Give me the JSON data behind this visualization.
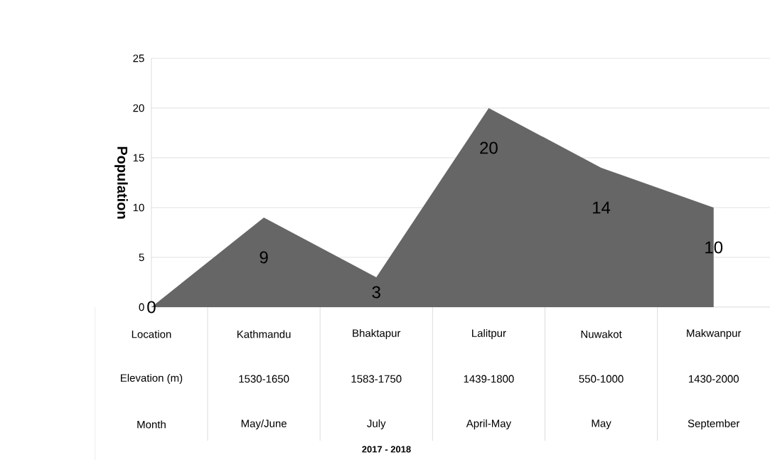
{
  "chart_data": {
    "type": "area",
    "categories": [
      "Location",
      "Kathmandu",
      "Bhaktapur",
      "Lalitpur",
      "Nuwakot",
      "Makwanpur"
    ],
    "values": [
      0,
      9,
      3,
      20,
      14,
      10
    ],
    "color": "#666666",
    "ylim": [
      0,
      25
    ],
    "yticks": [
      0,
      5,
      10,
      15,
      20,
      25
    ],
    "ylabel": "Population",
    "grid": "y",
    "data_labels": true,
    "annotations": [
      "Elevation (m)",
      "1530-1650",
      "1583-1750",
      "1439-1800",
      "550-1000",
      "1430-2000",
      "Month",
      "May/June",
      "July",
      "April-May",
      "May",
      "September",
      "2017 - 2018"
    ]
  }
}
